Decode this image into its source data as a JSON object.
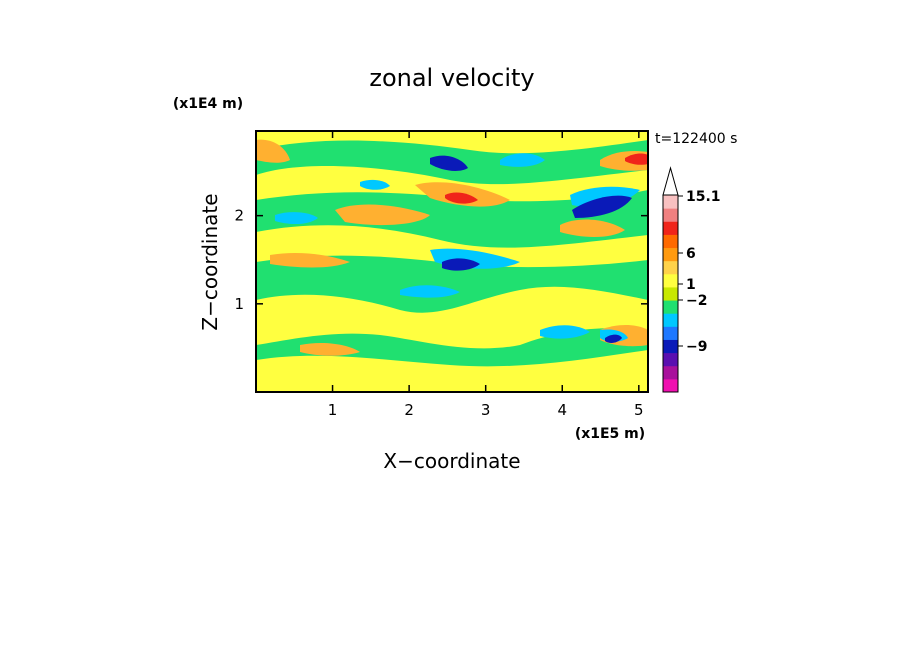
{
  "chart_data": {
    "type": "heatmap",
    "title": "zonal velocity",
    "xlabel": "X−coordinate",
    "ylabel": "Z−coordinate",
    "x_unit_label": "(x1E5 m)",
    "y_unit_label": "(x1E4 m)",
    "time_label": "t=122400 s",
    "xlim": [
      0,
      5.12
    ],
    "ylim": [
      0,
      2.96
    ],
    "x_ticks": [
      {
        "value": 1,
        "label": "1"
      },
      {
        "value": 2,
        "label": "2"
      },
      {
        "value": 3,
        "label": "3"
      },
      {
        "value": 4,
        "label": "4"
      },
      {
        "value": 5,
        "label": "5"
      }
    ],
    "y_ticks": [
      {
        "value": 1,
        "label": "1"
      },
      {
        "value": 2,
        "label": "2"
      }
    ],
    "colorbar": {
      "max_label": "15.1",
      "labels": [
        {
          "text": "15.1",
          "value": 15.1
        },
        {
          "text": "6",
          "value": 6
        },
        {
          "text": "1",
          "value": 1
        },
        {
          "text": "−2",
          "value": -2
        },
        {
          "text": "−9",
          "value": -9
        }
      ],
      "colors": [
        "#f010b0",
        "#a8109c",
        "#5a0fb0",
        "#0a1ab8",
        "#1e78ff",
        "#00c8ff",
        "#20e070",
        "#c8e800",
        "#ffff40",
        "#ffd24a",
        "#ff9a10",
        "#ff6a00",
        "#f0241a",
        "#f08080",
        "#f8c0c0"
      ]
    },
    "background_color": "#20e070",
    "grid": false,
    "legend": "colorbar right"
  }
}
